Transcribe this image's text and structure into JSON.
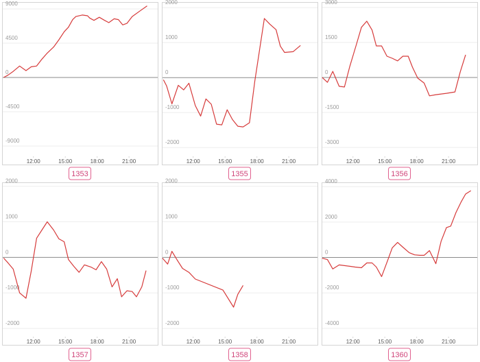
{
  "chart_data": [
    {
      "type": "line",
      "label": "1353",
      "color": "#d63a3a",
      "grid": true,
      "xlim": [
        9.05,
        23.7
      ],
      "xticks": [
        {
          "value": 12,
          "label": "12:00"
        },
        {
          "value": 15,
          "label": "15:00"
        },
        {
          "value": 18,
          "label": "18:00"
        },
        {
          "value": 21,
          "label": "21:00"
        }
      ],
      "ylim": [
        -10350,
        9900
      ],
      "yticks": [
        9000,
        4500,
        0,
        -4500,
        -9000
      ],
      "x": [
        9.2,
        9.6,
        10.1,
        10.7,
        11.3,
        11.8,
        12.3,
        12.8,
        13.3,
        13.9,
        14.4,
        14.9,
        15.3,
        15.7,
        16.0,
        16.6,
        17.1,
        17.3,
        17.7,
        18.2,
        18.7,
        19.1,
        19.6,
        20.0,
        20.4,
        20.8,
        21.3,
        22.1,
        22.7
      ],
      "values": [
        0,
        300,
        800,
        1500,
        900,
        1400,
        1500,
        2400,
        3200,
        4000,
        4950,
        6000,
        6600,
        7600,
        8000,
        8200,
        8100,
        7800,
        7500,
        7900,
        7500,
        7200,
        7700,
        7600,
        6900,
        7100,
        8000,
        8800,
        9400
      ]
    },
    {
      "type": "line",
      "label": "1355",
      "color": "#d63a3a",
      "grid": true,
      "xlim": [
        9.05,
        23.7
      ],
      "xticks": [
        {
          "value": 12,
          "label": "12:00"
        },
        {
          "value": 15,
          "label": "15:00"
        },
        {
          "value": 18,
          "label": "18:00"
        },
        {
          "value": 21,
          "label": "21:00"
        }
      ],
      "ylim": [
        -2250,
        2160
      ],
      "yticks": [
        2000,
        1000,
        0,
        -1000,
        -2000
      ],
      "x": [
        9.2,
        9.5,
        10.0,
        10.6,
        11.1,
        11.6,
        12.2,
        12.7,
        13.2,
        13.7,
        14.2,
        14.7,
        15.2,
        15.7,
        16.2,
        16.7,
        17.3,
        17.8,
        18.7,
        19.2,
        19.8,
        20.2,
        20.6,
        21.4,
        22.1
      ],
      "values": [
        -60,
        -240,
        -750,
        -220,
        -350,
        -160,
        -800,
        -1100,
        -610,
        -760,
        -1330,
        -1350,
        -920,
        -1200,
        -1390,
        -1410,
        -1290,
        -100,
        1690,
        1530,
        1370,
        900,
        720,
        740,
        920
      ]
    },
    {
      "type": "line",
      "label": "1356",
      "color": "#d63a3a",
      "grid": true,
      "xlim": [
        9.05,
        23.7
      ],
      "xticks": [
        {
          "value": 12,
          "label": "12:00"
        },
        {
          "value": 15,
          "label": "15:00"
        },
        {
          "value": 18,
          "label": "18:00"
        },
        {
          "value": 21,
          "label": "21:00"
        }
      ],
      "ylim": [
        -3380,
        3230
      ],
      "yticks": [
        3000,
        1500,
        0,
        -1500,
        -3000
      ],
      "x": [
        9.1,
        9.6,
        10.1,
        10.7,
        11.2,
        11.7,
        12.3,
        12.8,
        13.3,
        13.8,
        14.2,
        14.7,
        15.2,
        15.7,
        16.2,
        16.7,
        17.2,
        17.6,
        18.1,
        18.7,
        19.2,
        19.8,
        20.3,
        20.8,
        21.6,
        22.1,
        22.6
      ],
      "values": [
        0,
        -210,
        260,
        -380,
        -410,
        470,
        1380,
        2150,
        2410,
        2030,
        1350,
        1350,
        910,
        820,
        710,
        910,
        910,
        440,
        -30,
        -240,
        -790,
        -740,
        -710,
        -680,
        -620,
        240,
        970
      ]
    },
    {
      "type": "line",
      "label": "1357",
      "color": "#d63a3a",
      "grid": true,
      "xlim": [
        9.05,
        23.7
      ],
      "xticks": [
        {
          "value": 12,
          "label": "12:00"
        },
        {
          "value": 15,
          "label": "15:00"
        },
        {
          "value": 18,
          "label": "18:00"
        },
        {
          "value": 21,
          "label": "21:00"
        }
      ],
      "ylim": [
        -2230,
        2110
      ],
      "yticks": [
        2000,
        1000,
        0,
        -1000,
        -2000
      ],
      "x": [
        9.2,
        9.6,
        10.1,
        10.7,
        11.3,
        11.8,
        12.3,
        12.8,
        13.3,
        13.9,
        14.4,
        14.9,
        15.3,
        15.8,
        16.3,
        16.8,
        17.4,
        17.9,
        18.4,
        18.9,
        19.4,
        19.9,
        20.3,
        20.8,
        21.3,
        21.7,
        22.2,
        22.6
      ],
      "values": [
        -20,
        -150,
        -330,
        -1000,
        -1150,
        -380,
        540,
        770,
        1000,
        770,
        520,
        440,
        -60,
        -250,
        -420,
        -210,
        -270,
        -350,
        -120,
        -330,
        -830,
        -600,
        -1110,
        -940,
        -960,
        -1110,
        -830,
        -370
      ]
    },
    {
      "type": "line",
      "label": "1358",
      "color": "#d63a3a",
      "grid": true,
      "xlim": [
        9.05,
        23.7
      ],
      "xticks": [
        {
          "value": 12,
          "label": "12:00"
        },
        {
          "value": 15,
          "label": "15:00"
        },
        {
          "value": 18,
          "label": "18:00"
        },
        {
          "value": 21,
          "label": "21:00"
        }
      ],
      "ylim": [
        -2230,
        2110
      ],
      "yticks": [
        2000,
        1000,
        0,
        -1000,
        -2000
      ],
      "x": [
        9.1,
        9.6,
        10.0,
        10.5,
        11.0,
        11.6,
        12.2,
        14.8,
        15.8,
        16.2,
        16.7
      ],
      "values": [
        -20,
        -190,
        170,
        -80,
        -310,
        -420,
        -610,
        -920,
        -1400,
        -1040,
        -790
      ]
    },
    {
      "type": "line",
      "label": "1360",
      "color": "#d63a3a",
      "grid": true,
      "xlim": [
        9.05,
        23.7
      ],
      "xticks": [
        {
          "value": 12,
          "label": "12:00"
        },
        {
          "value": 15,
          "label": "15:00"
        },
        {
          "value": 18,
          "label": "18:00"
        },
        {
          "value": 21,
          "label": "21:00"
        }
      ],
      "ylim": [
        -4470,
        4240
      ],
      "yticks": [
        4000,
        2000,
        0,
        -2000,
        -4000
      ],
      "x": [
        9.1,
        9.6,
        10.1,
        10.7,
        11.2,
        11.7,
        12.2,
        12.8,
        13.3,
        13.8,
        14.2,
        14.7,
        15.3,
        15.7,
        16.2,
        16.7,
        17.3,
        17.8,
        18.3,
        18.7,
        19.2,
        19.8,
        20.3,
        20.8,
        21.2,
        21.7,
        22.2,
        22.6,
        23.1
      ],
      "values": [
        -40,
        -120,
        -650,
        -420,
        -460,
        -500,
        -540,
        -580,
        -310,
        -310,
        -540,
        -1080,
        -120,
        540,
        850,
        580,
        270,
        150,
        120,
        120,
        390,
        -350,
        920,
        1690,
        1770,
        2540,
        3160,
        3580,
        3770
      ]
    }
  ]
}
